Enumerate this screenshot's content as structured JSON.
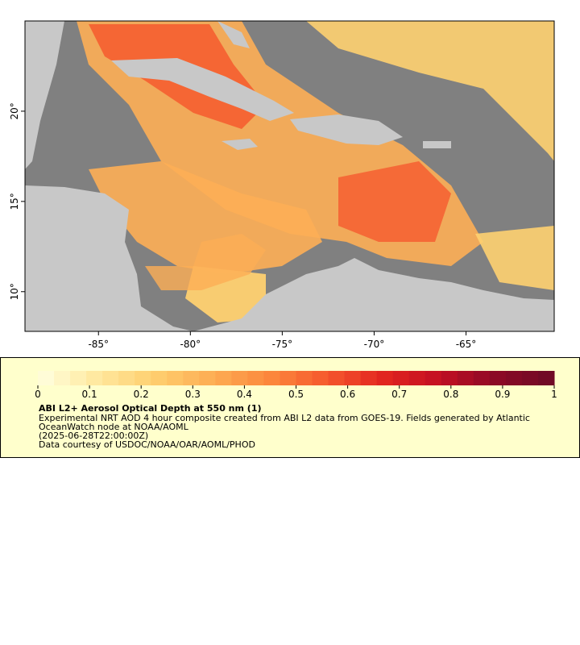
{
  "map": {
    "xlim": [
      -89,
      -60.2
    ],
    "ylim": [
      7.8,
      25
    ],
    "xticks": [
      {
        "value": -85,
        "label": "-85°"
      },
      {
        "value": -80,
        "label": "-80°"
      },
      {
        "value": -75,
        "label": "-75°"
      },
      {
        "value": -70,
        "label": "-70°"
      },
      {
        "value": -65,
        "label": "-65°"
      }
    ],
    "yticks": [
      {
        "value": 10,
        "label": "10°"
      },
      {
        "value": 15,
        "label": "15°"
      },
      {
        "value": 20,
        "label": "20°"
      }
    ],
    "ocean_color": "#808080",
    "land_color": "#c8c8c8"
  },
  "legend": {
    "clim": [
      0,
      1
    ],
    "ticks": [
      0,
      0.1,
      0.2,
      0.3,
      0.4,
      0.5,
      0.6,
      0.7,
      0.8,
      0.9,
      1
    ],
    "colormap": [
      "#ffffe0",
      "#ffe9a0",
      "#fed070",
      "#fdae55",
      "#fc8a3d",
      "#f65a2e",
      "#e3261f",
      "#c20f22",
      "#8b0a26",
      "#6d0a26"
    ],
    "steps": 32,
    "title": "ABI L2+ Aerosol Optical Depth at 550 nm (1)",
    "description": [
      "Experimental NRT AOD 4 hour composite created from ABI L2 data from GOES-19. Fields generated by Atlantic",
      "OceanWatch node at NOAA/AOML"
    ],
    "time": "(2025-06-28T22:00:00Z)",
    "credit": "Data courtesy of USDOC/NOAA/OAR/AOML/PHOD"
  }
}
